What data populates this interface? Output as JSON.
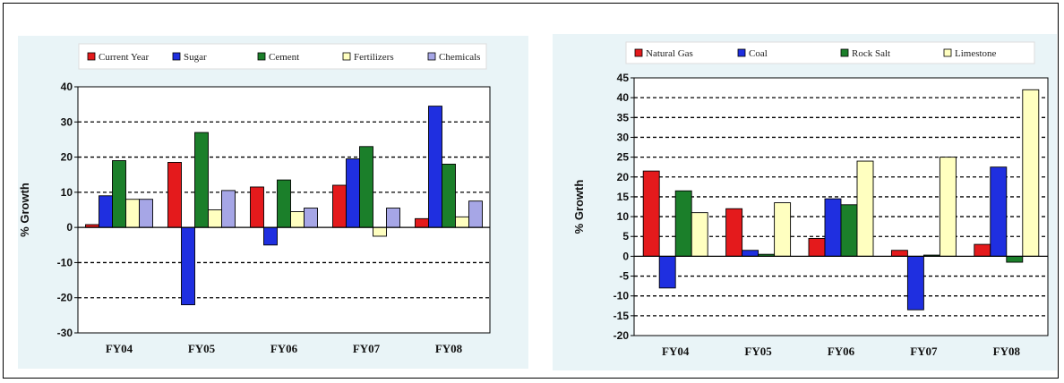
{
  "chart_data": [
    {
      "type": "bar",
      "title": "",
      "xlabel": "",
      "ylabel": "% Growth",
      "ylim": [
        -30,
        40
      ],
      "yticks": [
        "40",
        "30",
        "20",
        "10",
        "0",
        "-10",
        "-20",
        "-30"
      ],
      "categories": [
        "FY04",
        "FY05",
        "FY06",
        "FY07",
        "FY08"
      ],
      "legend_position": "top",
      "grid": "dashed horizontal",
      "series": [
        {
          "name": "Current Year",
          "color": "#e41a1c",
          "values": [
            0.8,
            18.5,
            11.5,
            12,
            2.5
          ]
        },
        {
          "name": "Sugar",
          "color": "#1f2fe0",
          "values": [
            9,
            -22,
            -5,
            19.5,
            34.5
          ]
        },
        {
          "name": "Cement",
          "color": "#1b7f2a",
          "values": [
            19,
            27,
            13.5,
            23,
            18
          ]
        },
        {
          "name": "Fertilizers",
          "color": "#ffffc0",
          "values": [
            8,
            5,
            4.5,
            -2.5,
            3
          ]
        },
        {
          "name": "Chemicals",
          "color": "#a6a6e6",
          "values": [
            8,
            10.5,
            5.5,
            5.5,
            7.5
          ]
        }
      ]
    },
    {
      "type": "bar",
      "title": "",
      "xlabel": "",
      "ylabel": "% Growth",
      "ylim": [
        -20,
        45
      ],
      "yticks": [
        "45",
        "40",
        "35",
        "30",
        "25",
        "20",
        "15",
        "10",
        "5",
        "0",
        "-5",
        "-10",
        "-15",
        "-20"
      ],
      "categories": [
        "FY04",
        "FY05",
        "FY06",
        "FY07",
        "FY08"
      ],
      "legend_position": "top",
      "grid": "dashed horizontal",
      "series": [
        {
          "name": "Natural Gas",
          "color": "#e41a1c",
          "values": [
            21.5,
            12,
            4.5,
            1.5,
            3
          ]
        },
        {
          "name": "Coal",
          "color": "#1f2fe0",
          "values": [
            -8,
            1.5,
            14.5,
            -13.5,
            22.5
          ]
        },
        {
          "name": "Rock Salt",
          "color": "#1b7f2a",
          "values": [
            16.5,
            0.5,
            13,
            0.3,
            -1.5
          ]
        },
        {
          "name": "Limestone",
          "color": "#ffffc0",
          "values": [
            11,
            13.5,
            24,
            25,
            42
          ]
        }
      ]
    }
  ]
}
